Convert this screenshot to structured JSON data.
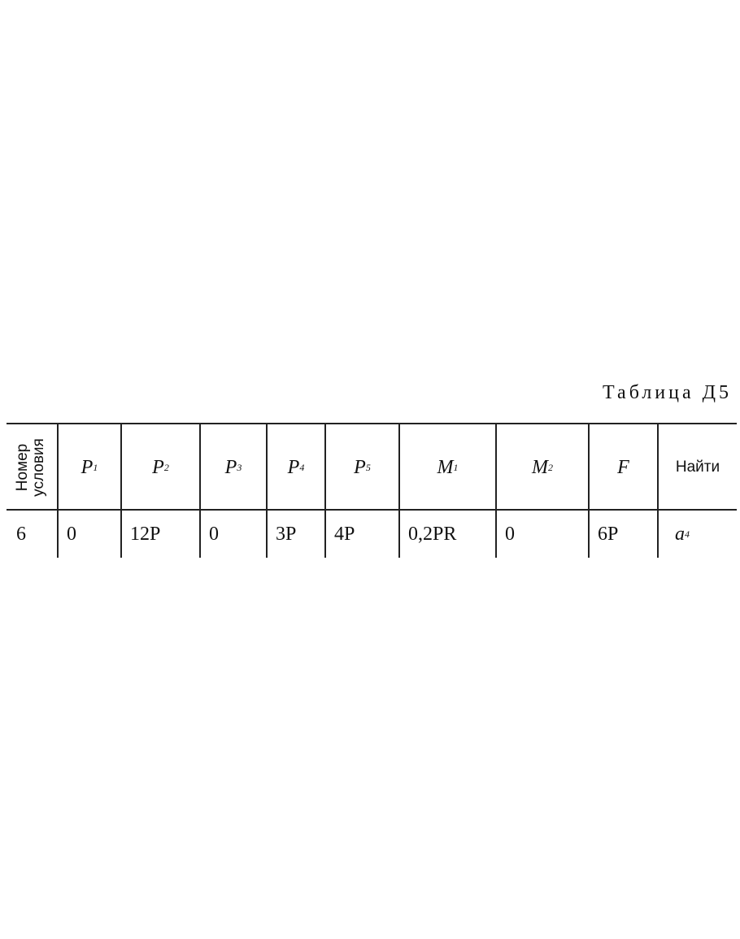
{
  "title": "Таблица Д5",
  "header": {
    "condition_line1": "Номер",
    "condition_line2": "условия",
    "columns": [
      {
        "sym": "P",
        "sub": "1"
      },
      {
        "sym": "P",
        "sub": "2"
      },
      {
        "sym": "P",
        "sub": "3"
      },
      {
        "sym": "P",
        "sub": "4"
      },
      {
        "sym": "P",
        "sub": "5"
      },
      {
        "sym": "M",
        "sub": "1"
      },
      {
        "sym": "M",
        "sub": "2"
      },
      {
        "sym": "F",
        "sub": ""
      }
    ],
    "find": "Найти"
  },
  "row": {
    "number": "6",
    "values": [
      "0",
      "12P",
      "0",
      "3P",
      "4P",
      "0,2PR",
      "0",
      "6P"
    ],
    "find_sym": "a",
    "find_sub": "4"
  }
}
